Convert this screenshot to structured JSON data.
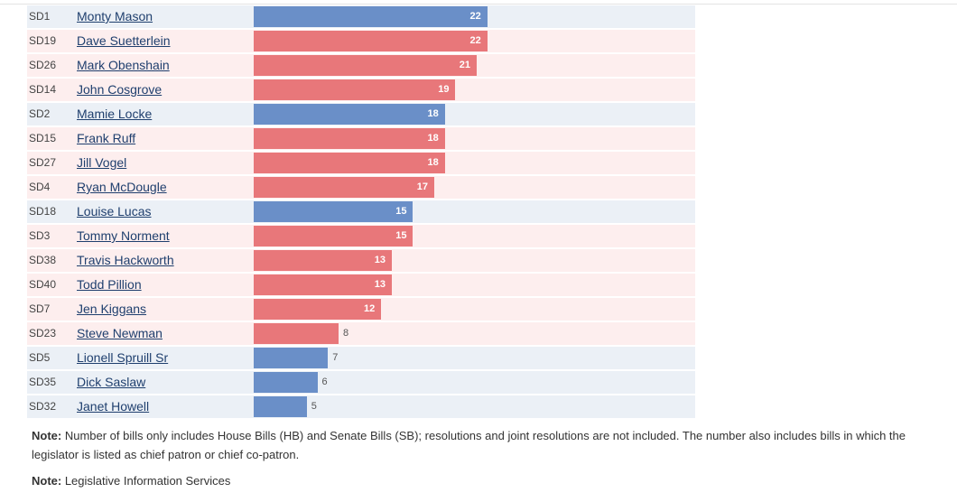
{
  "chart_data": {
    "type": "bar",
    "orientation": "horizontal",
    "xlim": [
      0,
      28
    ],
    "colors": {
      "Democrat": "#6a8fc8",
      "Republican": "#e8777a",
      "Democrat_row_bg": "#ebf0f6",
      "Republican_row_bg": "#fdeeee"
    },
    "rows": [
      {
        "district": "SD1",
        "name": "Monty Mason",
        "value": 22,
        "party": "Democrat"
      },
      {
        "district": "SD19",
        "name": "Dave Suetterlein",
        "value": 22,
        "party": "Republican"
      },
      {
        "district": "SD26",
        "name": "Mark Obenshain",
        "value": 21,
        "party": "Republican"
      },
      {
        "district": "SD14",
        "name": "John Cosgrove",
        "value": 19,
        "party": "Republican"
      },
      {
        "district": "SD2",
        "name": "Mamie Locke",
        "value": 18,
        "party": "Democrat"
      },
      {
        "district": "SD15",
        "name": "Frank Ruff",
        "value": 18,
        "party": "Republican"
      },
      {
        "district": "SD27",
        "name": "Jill Vogel",
        "value": 18,
        "party": "Republican"
      },
      {
        "district": "SD4",
        "name": "Ryan McDougle",
        "value": 17,
        "party": "Republican"
      },
      {
        "district": "SD18",
        "name": "Louise Lucas",
        "value": 15,
        "party": "Democrat"
      },
      {
        "district": "SD3",
        "name": "Tommy Norment",
        "value": 15,
        "party": "Republican"
      },
      {
        "district": "SD38",
        "name": "Travis Hackworth",
        "value": 13,
        "party": "Republican"
      },
      {
        "district": "SD40",
        "name": "Todd Pillion",
        "value": 13,
        "party": "Republican"
      },
      {
        "district": "SD7",
        "name": "Jen Kiggans",
        "value": 12,
        "party": "Republican"
      },
      {
        "district": "SD23",
        "name": "Steve Newman",
        "value": 8,
        "party": "Republican"
      },
      {
        "district": "SD5",
        "name": "Lionell Spruill Sr",
        "value": 7,
        "party": "Democrat"
      },
      {
        "district": "SD35",
        "name": "Dick Saslaw",
        "value": 6,
        "party": "Democrat"
      },
      {
        "district": "SD32",
        "name": "Janet Howell",
        "value": 5,
        "party": "Democrat"
      }
    ]
  },
  "notes": {
    "note1_label": "Note:",
    "note1_text": " Number of bills only includes House Bills (HB) and Senate Bills (SB); resolutions and joint resolutions are not included. The number also includes bills in which the legislator is listed as chief patron or chief co-patron.",
    "note2_label": "Note:",
    "note2_text": " Legislative Information Services"
  }
}
